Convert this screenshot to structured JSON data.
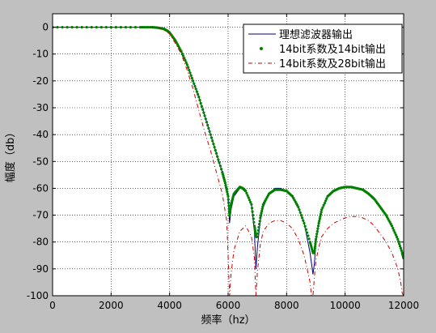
{
  "chart_data": {
    "type": "line",
    "title": "",
    "xlabel": "频率（hz）",
    "ylabel": "幅度（db）",
    "xlim": [
      0,
      12000
    ],
    "ylim": [
      -100,
      5
    ],
    "xticks": [
      0,
      2000,
      4000,
      6000,
      8000,
      10000,
      12000
    ],
    "yticks": [
      0,
      -10,
      -20,
      -30,
      -40,
      -50,
      -60,
      -70,
      -80,
      -90,
      -100
    ],
    "xtick_labels": [
      "0",
      "2000",
      "4000",
      "6000",
      "8000",
      "10000",
      "12000"
    ],
    "ytick_labels": [
      "0",
      "-10",
      "-20",
      "-30",
      "-40",
      "-50",
      "-60",
      "-70",
      "-80",
      "-90",
      "-100"
    ],
    "grid": true,
    "legend": {
      "position": "top-right",
      "entries": [
        "理想滤波器输出",
        "14bit系数及14bit输出",
        "14bit系数及28bit输出"
      ]
    },
    "series": [
      {
        "name": "理想滤波器输出",
        "style": "solid",
        "color": "#000080",
        "x": [
          0,
          1000,
          2000,
          3000,
          3400,
          3600,
          3800,
          3900,
          4000,
          4200,
          4400,
          4600,
          4800,
          5000,
          5200,
          5400,
          5600,
          5800,
          5900,
          6000,
          6050,
          6100,
          6200,
          6400,
          6500,
          6600,
          6800,
          6900,
          6950,
          7000,
          7100,
          7200,
          7400,
          7600,
          7800,
          8000,
          8200,
          8400,
          8600,
          8800,
          8900,
          8950,
          9000,
          9100,
          9200,
          9400,
          9600,
          9800,
          10000,
          10200,
          10400,
          10600,
          10800,
          11000,
          11200,
          11400,
          11600,
          11800,
          11950,
          12000
        ],
        "y": [
          0,
          0,
          0,
          0,
          0,
          -0.2,
          -0.6,
          -1.2,
          -2,
          -5,
          -9,
          -14,
          -20,
          -26,
          -33,
          -40,
          -47,
          -54,
          -58,
          -63,
          -73,
          -68,
          -63,
          -60,
          -60,
          -61,
          -66,
          -76,
          -90,
          -82,
          -72,
          -67,
          -62,
          -60,
          -60,
          -61,
          -63,
          -67,
          -73,
          -84,
          -92,
          -88,
          -80,
          -73,
          -68,
          -63,
          -61,
          -60,
          -59.5,
          -59.5,
          -60,
          -60.5,
          -62,
          -64,
          -67,
          -70,
          -74,
          -79,
          -84,
          -86
        ]
      },
      {
        "name": "14bit系数及14bit输出",
        "style": "markers",
        "color": "#008000",
        "x": [
          0,
          1000,
          2000,
          3000,
          3400,
          3600,
          3800,
          3900,
          4000,
          4200,
          4400,
          4600,
          4800,
          5000,
          5200,
          5400,
          5600,
          5800,
          5900,
          6000,
          6050,
          6100,
          6200,
          6400,
          6500,
          6600,
          6800,
          6900,
          6950,
          7000,
          7100,
          7200,
          7400,
          7600,
          7800,
          8000,
          8200,
          8400,
          8600,
          8800,
          8900,
          8950,
          9000,
          9100,
          9200,
          9400,
          9600,
          9800,
          10000,
          10200,
          10400,
          10600,
          10800,
          11000,
          11200,
          11400,
          11600,
          11800,
          11950,
          12000
        ],
        "y": [
          0,
          0,
          0,
          0,
          0,
          -0.2,
          -0.6,
          -1.2,
          -2,
          -5,
          -9,
          -14,
          -20,
          -26,
          -33,
          -40,
          -47,
          -54,
          -58,
          -63,
          -70,
          -66,
          -62,
          -59.5,
          -60,
          -61,
          -66,
          -74,
          -78,
          -78,
          -71,
          -66,
          -62,
          -60.5,
          -60.5,
          -61,
          -63,
          -67,
          -73,
          -80,
          -84,
          -84,
          -79,
          -73,
          -68,
          -63,
          -61,
          -60,
          -59.5,
          -59.5,
          -60,
          -60.5,
          -62,
          -64,
          -67,
          -70,
          -74,
          -79,
          -84,
          -86
        ]
      },
      {
        "name": "14bit系数及28bit输出",
        "style": "dashdot",
        "color": "#cc0000",
        "x": [
          0,
          1000,
          2000,
          3000,
          3400,
          3600,
          3800,
          4000,
          4200,
          4400,
          4600,
          4800,
          5000,
          5200,
          5400,
          5600,
          5800,
          5950,
          6000,
          6050,
          6100,
          6200,
          6400,
          6600,
          6800,
          6900,
          6950,
          7000,
          7100,
          7200,
          7400,
          7600,
          7800,
          8000,
          8200,
          8400,
          8600,
          8800,
          8850,
          8900,
          8950,
          9000,
          9100,
          9200,
          9400,
          9600,
          9800,
          10000,
          10200,
          10400,
          10600,
          10800,
          11000,
          11200,
          11400,
          11600,
          11800,
          11900,
          11950,
          12000
        ],
        "y": [
          0,
          0,
          0,
          0,
          0,
          -0.2,
          -0.8,
          -2.5,
          -6,
          -10,
          -16,
          -23,
          -31,
          -39,
          -46,
          -54,
          -62,
          -72,
          -85,
          -100,
          -92,
          -83,
          -76,
          -74,
          -78,
          -86,
          -100,
          -91,
          -81,
          -76,
          -73,
          -72,
          -72,
          -73,
          -75,
          -79,
          -85,
          -95,
          -100,
          -100,
          -93,
          -87,
          -82,
          -78,
          -75,
          -73,
          -72,
          -71,
          -70.5,
          -70.5,
          -71,
          -72,
          -74,
          -77,
          -80,
          -84,
          -90,
          -95,
          -99,
          -100
        ]
      }
    ]
  }
}
